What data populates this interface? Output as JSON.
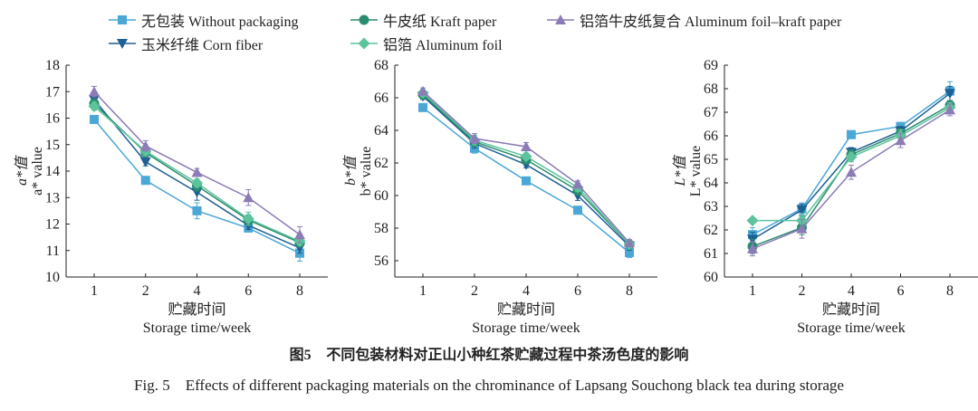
{
  "legend": {
    "items": [
      {
        "key": "without",
        "label": "无包装 Without packaging"
      },
      {
        "key": "kraft",
        "label": "牛皮纸 Kraft paper"
      },
      {
        "key": "composite",
        "label": "铝箔牛皮纸复合 Aluminum foil–kraft paper"
      },
      {
        "key": "corn",
        "label": "玉米纤维 Corn fiber"
      },
      {
        "key": "foil",
        "label": "铝箔 Aluminum foil"
      }
    ]
  },
  "colors": {
    "without": "#4aa7d6",
    "corn": "#1e5f94",
    "kraft": "#2a8c6e",
    "foil": "#5cc39c",
    "composite": "#8c7bb6"
  },
  "caption": {
    "cn_prefix": "图",
    "cn_num": "5",
    "cn_text": "不同包装材料对正山小种红茶贮藏过程中茶汤色度的影响",
    "en": "Fig. 5    Effects of different packaging materials on the chrominance of Lapsang Souchong black tea during storage"
  },
  "chart_data": [
    {
      "type": "line",
      "id": "a",
      "categories": [
        "1",
        "2",
        "4",
        "6",
        "8"
      ],
      "xlabel_cn": "贮藏时间",
      "xlabel_en": "Storage time/week",
      "ylabel_cn": "a*值",
      "ylabel_en": "a* value",
      "ylim": [
        10,
        18
      ],
      "yticks": [
        10,
        11,
        12,
        13,
        14,
        15,
        16,
        17,
        18
      ],
      "series": [
        {
          "key": "without",
          "name": "无包装 Without packaging",
          "values": [
            15.95,
            13.65,
            12.5,
            11.85,
            10.9
          ],
          "err": [
            0.1,
            0.1,
            0.3,
            0.1,
            0.3
          ]
        },
        {
          "key": "corn",
          "name": "玉米纤维 Corn fiber",
          "values": [
            16.7,
            14.35,
            13.2,
            11.95,
            11.1
          ],
          "err": [
            0.15,
            0.15,
            0.3,
            0.15,
            0.2
          ]
        },
        {
          "key": "kraft",
          "name": "牛皮纸 Kraft paper",
          "values": [
            16.55,
            14.7,
            13.45,
            12.15,
            11.3
          ],
          "err": [
            0.15,
            0.15,
            0.2,
            0.2,
            0.15
          ]
        },
        {
          "key": "foil",
          "name": "铝箔 Aluminum foil",
          "values": [
            16.45,
            14.75,
            13.55,
            12.2,
            11.35
          ],
          "err": [
            0.15,
            0.15,
            0.15,
            0.25,
            0.15
          ]
        },
        {
          "key": "composite",
          "name": "铝箔牛皮纸复合 Aluminum foil–kraft paper",
          "values": [
            17.0,
            14.95,
            13.95,
            13.0,
            11.6
          ],
          "err": [
            0.2,
            0.2,
            0.15,
            0.3,
            0.3
          ]
        }
      ]
    },
    {
      "type": "line",
      "id": "b",
      "categories": [
        "1",
        "2",
        "4",
        "6",
        "8"
      ],
      "xlabel_cn": "贮藏时间",
      "xlabel_en": "Storage time/week",
      "ylabel_cn": "b*值",
      "ylabel_en": "b* value",
      "ylim": [
        55,
        68
      ],
      "yticks": [
        56,
        58,
        60,
        62,
        64,
        66,
        68
      ],
      "series": [
        {
          "key": "without",
          "name": "无包装 Without packaging",
          "values": [
            65.4,
            62.9,
            60.9,
            59.1,
            56.5
          ],
          "err": [
            0.2,
            0.3,
            0.15,
            0.15,
            0.3
          ]
        },
        {
          "key": "corn",
          "name": "玉米纤维 Corn fiber",
          "values": [
            66.1,
            63.2,
            61.9,
            60.0,
            56.9
          ],
          "err": [
            0.2,
            0.3,
            0.2,
            0.3,
            0.25
          ]
        },
        {
          "key": "kraft",
          "name": "牛皮纸 Kraft paper",
          "values": [
            66.2,
            63.3,
            62.2,
            60.3,
            57.0
          ],
          "err": [
            0.2,
            0.3,
            0.2,
            0.25,
            0.2
          ]
        },
        {
          "key": "foil",
          "name": "铝箔 Aluminum foil",
          "values": [
            66.3,
            63.4,
            62.4,
            60.5,
            57.0
          ],
          "err": [
            0.2,
            0.3,
            0.2,
            0.25,
            0.2
          ]
        },
        {
          "key": "composite",
          "name": "铝箔牛皮纸复合 Aluminum foil–kraft paper",
          "values": [
            66.4,
            63.5,
            63.0,
            60.7,
            57.1
          ],
          "err": [
            0.2,
            0.3,
            0.25,
            0.2,
            0.2
          ]
        }
      ]
    },
    {
      "type": "line",
      "id": "L",
      "categories": [
        "1",
        "2",
        "4",
        "6",
        "8"
      ],
      "xlabel_cn": "贮藏时间",
      "xlabel_en": "Storage time/week",
      "ylabel_cn": "L*值",
      "ylabel_en": "L* value",
      "ylim": [
        60,
        69
      ],
      "yticks": [
        60,
        61,
        62,
        63,
        64,
        65,
        66,
        67,
        68,
        69
      ],
      "series": [
        {
          "key": "without",
          "name": "无包装 Without packaging",
          "values": [
            61.8,
            62.9,
            66.05,
            66.4,
            67.9
          ],
          "err": [
            0.3,
            0.25,
            0.1,
            0.15,
            0.4
          ]
        },
        {
          "key": "corn",
          "name": "玉米纤维 Corn fiber",
          "values": [
            61.6,
            62.85,
            65.3,
            66.2,
            67.8
          ],
          "err": [
            0.3,
            0.25,
            0.2,
            0.2,
            0.3
          ]
        },
        {
          "key": "kraft",
          "name": "牛皮纸 Kraft paper",
          "values": [
            61.3,
            62.1,
            65.2,
            66.1,
            67.3
          ],
          "err": [
            0.3,
            0.3,
            0.2,
            0.2,
            0.2
          ]
        },
        {
          "key": "foil",
          "name": "铝箔 Aluminum foil",
          "values": [
            62.4,
            62.4,
            65.1,
            66.0,
            67.2
          ],
          "err": [
            0.1,
            0.3,
            0.2,
            0.25,
            0.2
          ]
        },
        {
          "key": "composite",
          "name": "铝箔牛皮纸复合 Aluminum foil–kraft paper",
          "values": [
            61.2,
            62.05,
            64.45,
            65.8,
            67.1
          ],
          "err": [
            0.3,
            0.4,
            0.3,
            0.3,
            0.25
          ]
        }
      ]
    }
  ]
}
